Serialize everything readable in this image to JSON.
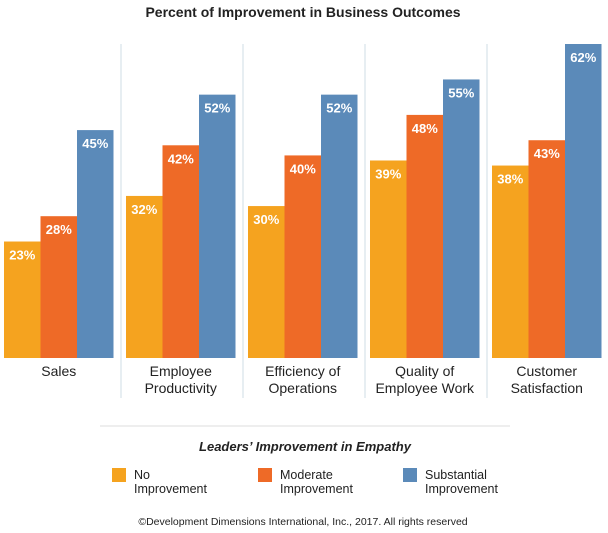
{
  "chart_data": {
    "type": "bar",
    "title": "Percent of Improvement in Business Outcomes",
    "categories": [
      [
        "Sales"
      ],
      [
        "Employee",
        "Productivity"
      ],
      [
        "Efficiency of",
        "Operations"
      ],
      [
        "Quality of",
        "Employee Work"
      ],
      [
        "Customer",
        "Satisfaction"
      ]
    ],
    "series": [
      {
        "name": "No Improvement",
        "legend_lines": [
          "No",
          "Improvement"
        ],
        "color": "#f5a31f",
        "values": [
          23,
          32,
          30,
          39,
          38
        ]
      },
      {
        "name": "Moderate Improvement",
        "legend_lines": [
          "Moderate",
          "Improvement"
        ],
        "color": "#ee6a27",
        "values": [
          28,
          42,
          40,
          48,
          43
        ]
      },
      {
        "name": "Substantial Improvement",
        "legend_lines": [
          "Substantial",
          "Improvement"
        ],
        "color": "#5b8ab9",
        "values": [
          45,
          52,
          52,
          55,
          62
        ]
      }
    ],
    "value_suffix": "%",
    "ylim": [
      0,
      62
    ],
    "grid": false,
    "legend_title": "Leaders’ Improvement in Empathy",
    "legend_position": "bottom"
  },
  "footer": "©Development Dimensions International, Inc., 2017. All rights reserved"
}
